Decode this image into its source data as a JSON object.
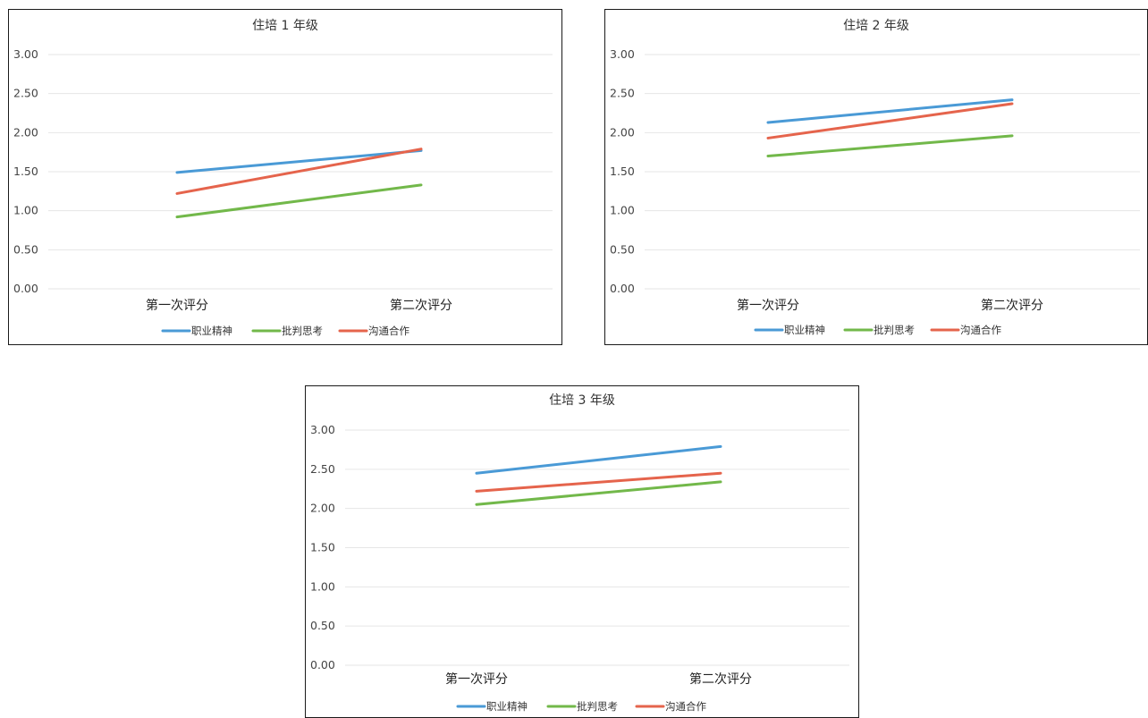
{
  "colors": {
    "series_1": "#4a9ad6",
    "series_2": "#72b84a",
    "series_3": "#e5644c",
    "grid": "#e6e6e6",
    "border": "#1a1a1a"
  },
  "chart_data": [
    {
      "type": "line",
      "title": "住培 1 年级",
      "categories": [
        "第一次评分",
        "第二次评分"
      ],
      "ylim": [
        0,
        3
      ],
      "yticks": [
        "0.00",
        "0.50",
        "1.00",
        "1.50",
        "2.00",
        "2.50",
        "3.00"
      ],
      "grid": true,
      "legend": "bottom",
      "series": [
        {
          "name": "职业精神",
          "values": [
            1.49,
            1.77
          ]
        },
        {
          "name": "批判思考",
          "values": [
            0.92,
            1.33
          ]
        },
        {
          "name": "沟通合作",
          "values": [
            1.22,
            1.79
          ]
        }
      ]
    },
    {
      "type": "line",
      "title": "住培 2 年级",
      "categories": [
        "第一次评分",
        "第二次评分"
      ],
      "ylim": [
        0,
        3
      ],
      "yticks": [
        "0.00",
        "0.50",
        "1.00",
        "1.50",
        "2.00",
        "2.50",
        "3.00"
      ],
      "grid": true,
      "legend": "bottom",
      "series": [
        {
          "name": "职业精神",
          "values": [
            2.13,
            2.42
          ]
        },
        {
          "name": "批判思考",
          "values": [
            1.7,
            1.96
          ]
        },
        {
          "name": "沟通合作",
          "values": [
            1.93,
            2.37
          ]
        }
      ]
    },
    {
      "type": "line",
      "title": "住培 3 年级",
      "categories": [
        "第一次评分",
        "第二次评分"
      ],
      "ylim": [
        0,
        3
      ],
      "yticks": [
        "0.00",
        "0.50",
        "1.00",
        "1.50",
        "2.00",
        "2.50",
        "3.00"
      ],
      "grid": true,
      "legend": "bottom",
      "series": [
        {
          "name": "职业精神",
          "values": [
            2.45,
            2.79
          ]
        },
        {
          "name": "批判思考",
          "values": [
            2.05,
            2.34
          ]
        },
        {
          "name": "沟通合作",
          "values": [
            2.22,
            2.45
          ]
        }
      ]
    }
  ]
}
